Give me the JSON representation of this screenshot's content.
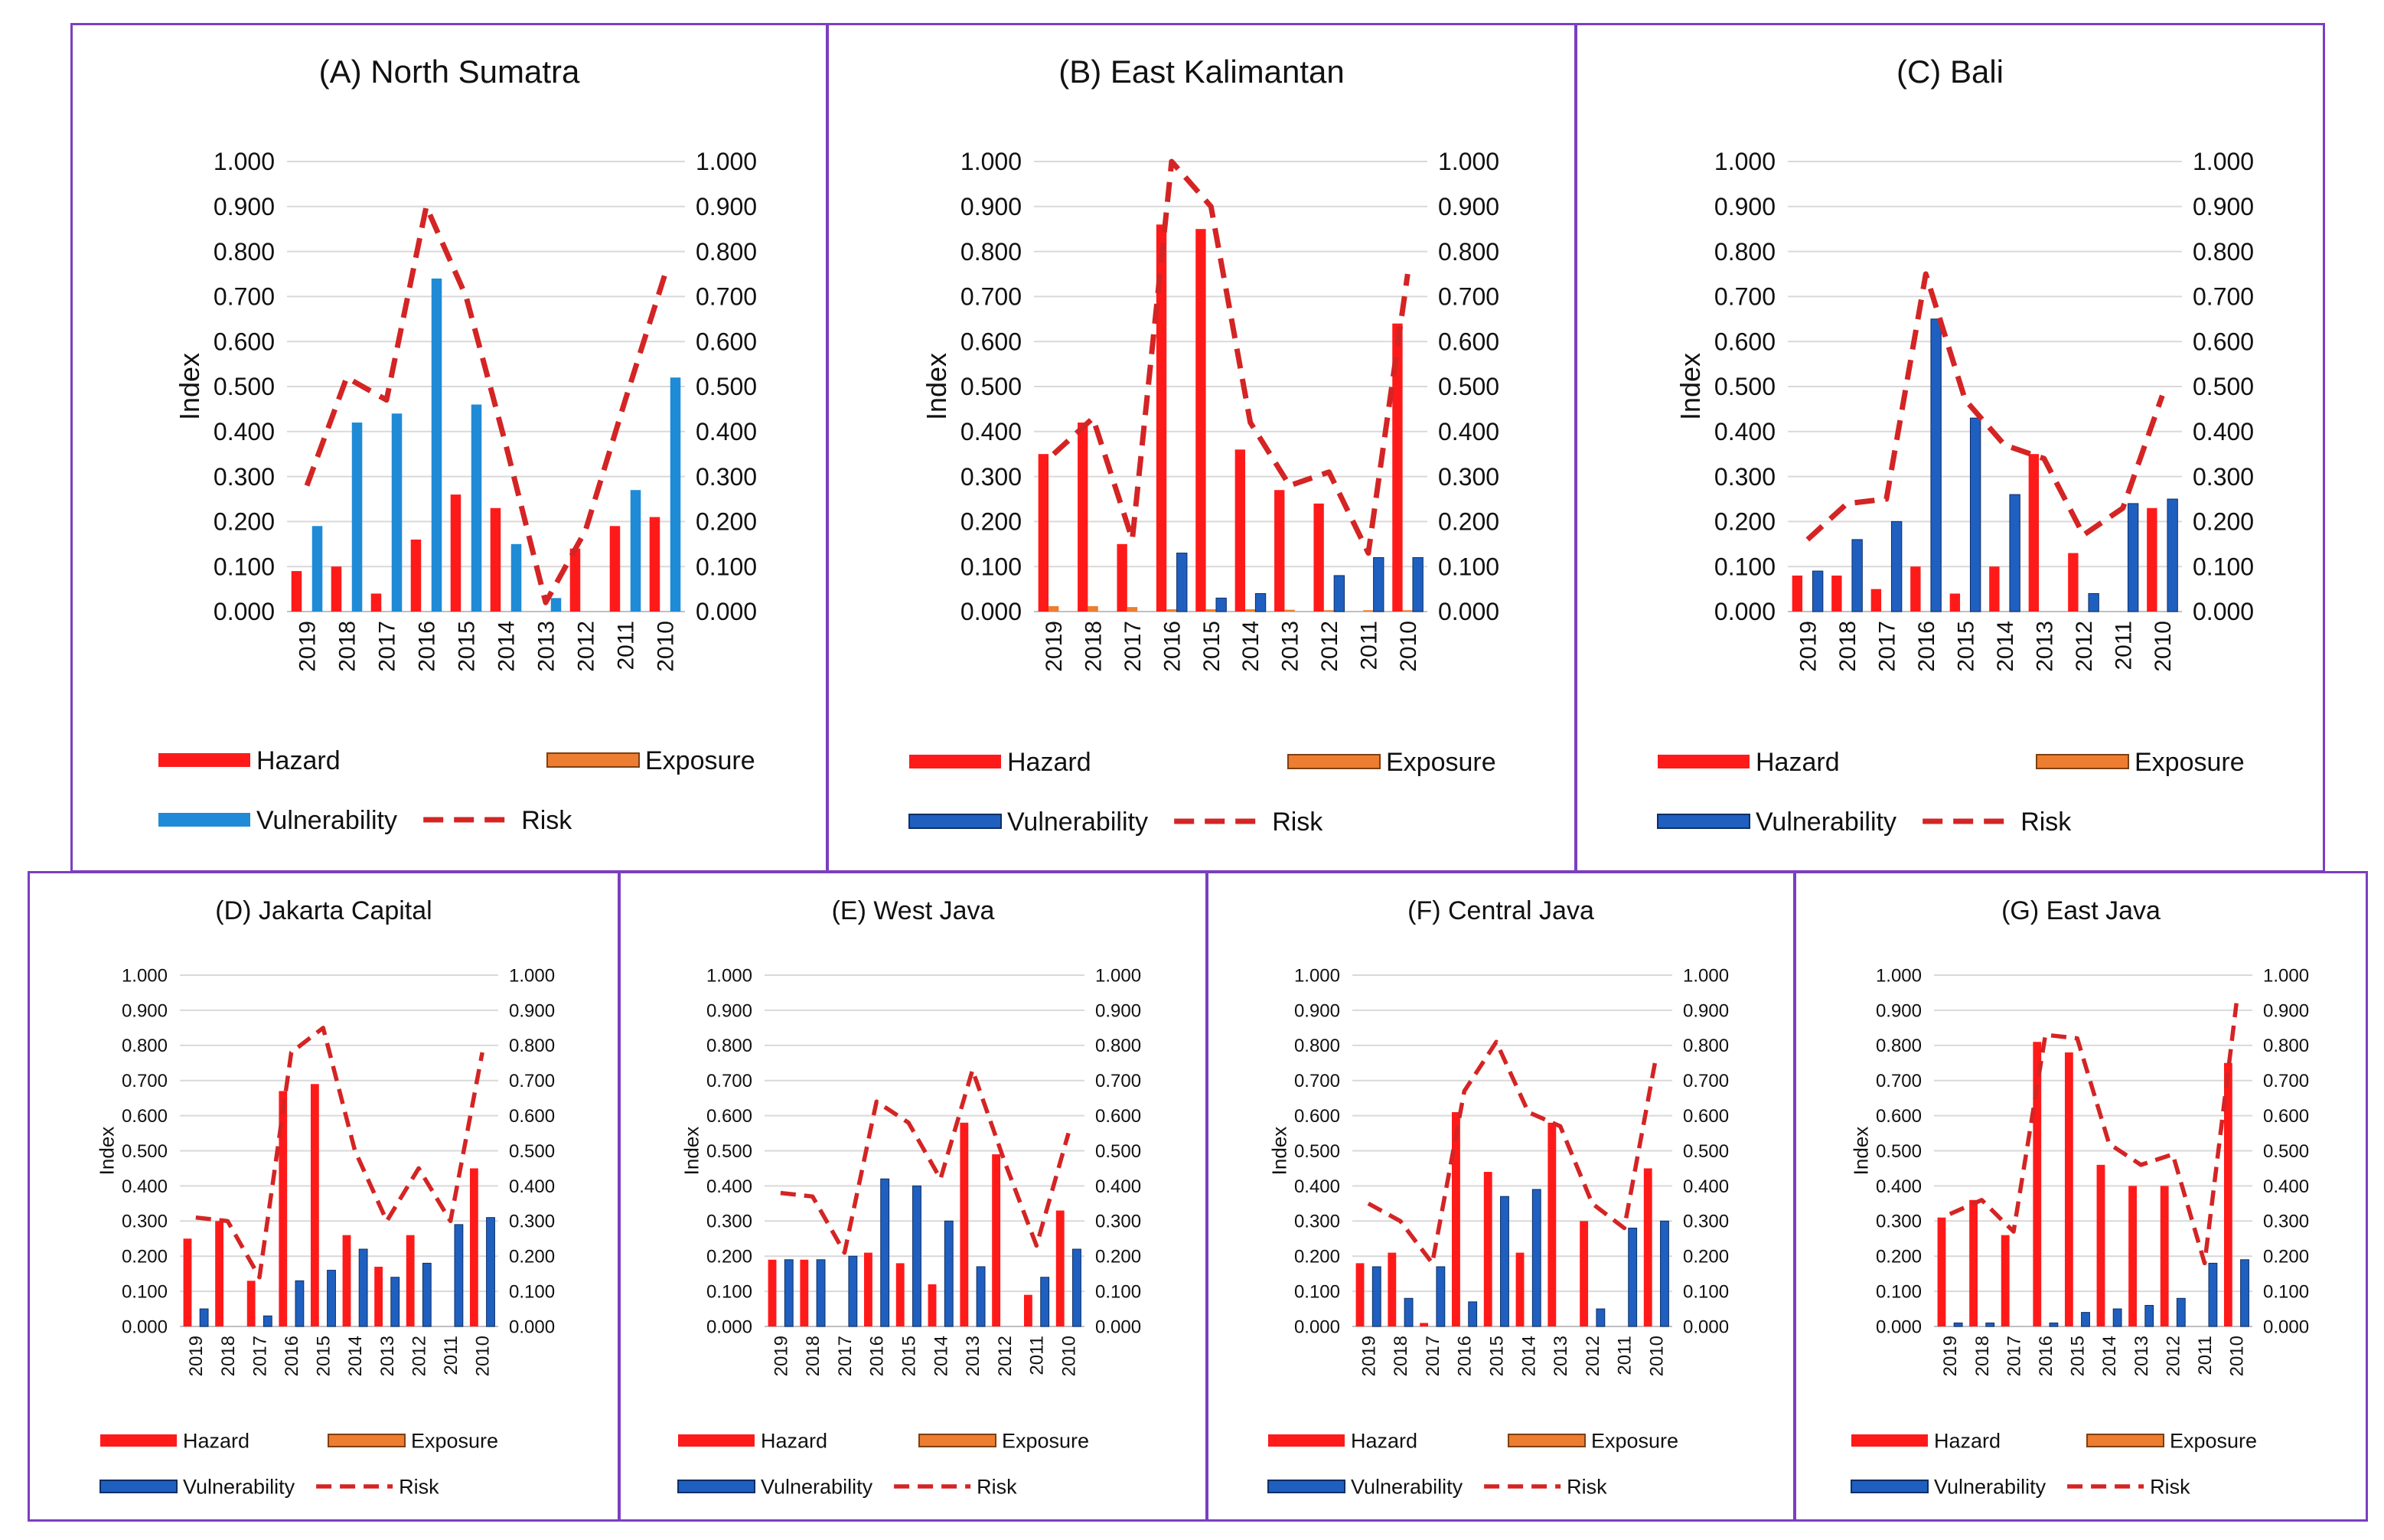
{
  "chart_data": [
    {
      "type": "bar",
      "title": "(A) North Sumatra",
      "ylabel": "Index",
      "ylim": [
        0,
        1
      ],
      "tick_labels": [
        "0.000",
        "0.100",
        "0.200",
        "0.300",
        "0.400",
        "0.500",
        "0.600",
        "0.700",
        "0.800",
        "0.900",
        "1.000"
      ],
      "categories": [
        "2019",
        "2018",
        "2017",
        "2016",
        "2015",
        "2014",
        "2013",
        "2012",
        "2011",
        "2010"
      ],
      "series": [
        {
          "name": "Hazard",
          "kind": "bar",
          "values": [
            0.09,
            0.1,
            0.04,
            0.16,
            0.26,
            0.23,
            0.0,
            0.14,
            0.19,
            0.21
          ]
        },
        {
          "name": "Exposure",
          "kind": "bar",
          "values": [
            0,
            0,
            0,
            0,
            0,
            0,
            0,
            0,
            0,
            0
          ]
        },
        {
          "name": "Vulnerability",
          "kind": "bar",
          "values": [
            0.19,
            0.42,
            0.44,
            0.74,
            0.46,
            0.15,
            0.03,
            0.0,
            0.27,
            0.52
          ]
        },
        {
          "name": "Risk",
          "kind": "line",
          "values": [
            0.28,
            0.52,
            0.47,
            0.9,
            0.7,
            0.37,
            0.02,
            0.18,
            0.47,
            0.75
          ]
        }
      ],
      "vuln_color": "#1f8bd6"
    },
    {
      "type": "bar",
      "title": "(B) East Kalimantan",
      "ylabel": "Index",
      "ylim": [
        0,
        1
      ],
      "tick_labels": [
        "0.000",
        "0.100",
        "0.200",
        "0.300",
        "0.400",
        "0.500",
        "0.600",
        "0.700",
        "0.800",
        "0.900",
        "1.000"
      ],
      "categories": [
        "2019",
        "2018",
        "2017",
        "2016",
        "2015",
        "2014",
        "2013",
        "2012",
        "2011",
        "2010"
      ],
      "series": [
        {
          "name": "Hazard",
          "kind": "bar",
          "values": [
            0.35,
            0.42,
            0.15,
            0.86,
            0.85,
            0.36,
            0.27,
            0.24,
            0.0,
            0.64
          ]
        },
        {
          "name": "Exposure",
          "kind": "bar",
          "values": [
            0.012,
            0.012,
            0.01,
            0.005,
            0.005,
            0.005,
            0.004,
            0.003,
            0.003,
            0.003
          ]
        },
        {
          "name": "Vulnerability",
          "kind": "bar",
          "values": [
            0.0,
            0.0,
            0.0,
            0.13,
            0.03,
            0.04,
            0.0,
            0.08,
            0.12,
            0.12
          ]
        },
        {
          "name": "Risk",
          "kind": "line",
          "values": [
            0.35,
            0.43,
            0.16,
            1.0,
            0.9,
            0.42,
            0.28,
            0.31,
            0.13,
            0.75
          ]
        }
      ],
      "vuln_color": "#1f5fbf"
    },
    {
      "type": "bar",
      "title": "(C) Bali",
      "ylabel": "Index",
      "ylim": [
        0,
        1
      ],
      "tick_labels": [
        "0.000",
        "0.100",
        "0.200",
        "0.300",
        "0.400",
        "0.500",
        "0.600",
        "0.700",
        "0.800",
        "0.900",
        "1.000"
      ],
      "categories": [
        "2019",
        "2018",
        "2017",
        "2016",
        "2015",
        "2014",
        "2013",
        "2012",
        "2011",
        "2010"
      ],
      "series": [
        {
          "name": "Hazard",
          "kind": "bar",
          "values": [
            0.08,
            0.08,
            0.05,
            0.1,
            0.04,
            0.1,
            0.35,
            0.13,
            0.0,
            0.23
          ]
        },
        {
          "name": "Exposure",
          "kind": "bar",
          "values": [
            0,
            0,
            0,
            0,
            0,
            0,
            0,
            0,
            0,
            0
          ]
        },
        {
          "name": "Vulnerability",
          "kind": "bar",
          "values": [
            0.09,
            0.16,
            0.2,
            0.65,
            0.43,
            0.26,
            0.0,
            0.04,
            0.24,
            0.25
          ]
        },
        {
          "name": "Risk",
          "kind": "line",
          "values": [
            0.16,
            0.24,
            0.25,
            0.75,
            0.47,
            0.37,
            0.34,
            0.17,
            0.23,
            0.48
          ]
        }
      ],
      "vuln_color": "#1f5fbf"
    },
    {
      "type": "bar",
      "title": "(D) Jakarta Capital",
      "ylabel": "Index",
      "ylim": [
        0,
        1
      ],
      "tick_labels": [
        "0.000",
        "0.100",
        "0.200",
        "0.300",
        "0.400",
        "0.500",
        "0.600",
        "0.700",
        "0.800",
        "0.900",
        "1.000"
      ],
      "categories": [
        "2019",
        "2018",
        "2017",
        "2016",
        "2015",
        "2014",
        "2013",
        "2012",
        "2011",
        "2010"
      ],
      "series": [
        {
          "name": "Hazard",
          "kind": "bar",
          "values": [
            0.25,
            0.3,
            0.13,
            0.67,
            0.69,
            0.26,
            0.17,
            0.26,
            0.0,
            0.45
          ]
        },
        {
          "name": "Exposure",
          "kind": "bar",
          "values": [
            0,
            0,
            0,
            0,
            0,
            0,
            0,
            0,
            0,
            0
          ]
        },
        {
          "name": "Vulnerability",
          "kind": "bar",
          "values": [
            0.05,
            0.0,
            0.03,
            0.13,
            0.16,
            0.22,
            0.14,
            0.18,
            0.29,
            0.31
          ]
        },
        {
          "name": "Risk",
          "kind": "line",
          "values": [
            0.31,
            0.3,
            0.14,
            0.78,
            0.85,
            0.5,
            0.3,
            0.45,
            0.3,
            0.78
          ]
        }
      ],
      "vuln_color": "#1f5fbf"
    },
    {
      "type": "bar",
      "title": "(E) West Java",
      "ylabel": "Index",
      "ylim": [
        0,
        1
      ],
      "tick_labels": [
        "0.000",
        "0.100",
        "0.200",
        "0.300",
        "0.400",
        "0.500",
        "0.600",
        "0.700",
        "0.800",
        "0.900",
        "1.000"
      ],
      "categories": [
        "2019",
        "2018",
        "2017",
        "2016",
        "2015",
        "2014",
        "2013",
        "2012",
        "2011",
        "2010"
      ],
      "series": [
        {
          "name": "Hazard",
          "kind": "bar",
          "values": [
            0.19,
            0.19,
            0.0,
            0.21,
            0.18,
            0.12,
            0.58,
            0.49,
            0.09,
            0.33
          ]
        },
        {
          "name": "Exposure",
          "kind": "bar",
          "values": [
            0,
            0,
            0,
            0,
            0,
            0,
            0,
            0,
            0,
            0
          ]
        },
        {
          "name": "Vulnerability",
          "kind": "bar",
          "values": [
            0.19,
            0.19,
            0.2,
            0.42,
            0.4,
            0.3,
            0.17,
            0.0,
            0.14,
            0.22
          ]
        },
        {
          "name": "Risk",
          "kind": "line",
          "values": [
            0.38,
            0.37,
            0.21,
            0.64,
            0.58,
            0.42,
            0.73,
            0.47,
            0.23,
            0.55
          ]
        }
      ],
      "vuln_color": "#1f5fbf"
    },
    {
      "type": "bar",
      "title": "(F) Central Java",
      "ylabel": "Index",
      "ylim": [
        0,
        1
      ],
      "tick_labels": [
        "0.000",
        "0.100",
        "0.200",
        "0.300",
        "0.400",
        "0.500",
        "0.600",
        "0.700",
        "0.800",
        "0.900",
        "1.000"
      ],
      "categories": [
        "2019",
        "2018",
        "2017",
        "2016",
        "2015",
        "2014",
        "2013",
        "2012",
        "2011",
        "2010"
      ],
      "series": [
        {
          "name": "Hazard",
          "kind": "bar",
          "values": [
            0.18,
            0.21,
            0.01,
            0.61,
            0.44,
            0.21,
            0.58,
            0.3,
            0.0,
            0.45
          ]
        },
        {
          "name": "Exposure",
          "kind": "bar",
          "values": [
            0,
            0,
            0,
            0,
            0,
            0,
            0,
            0,
            0,
            0
          ]
        },
        {
          "name": "Vulnerability",
          "kind": "bar",
          "values": [
            0.17,
            0.08,
            0.17,
            0.07,
            0.37,
            0.39,
            0.0,
            0.05,
            0.28,
            0.3
          ]
        },
        {
          "name": "Risk",
          "kind": "line",
          "values": [
            0.35,
            0.3,
            0.18,
            0.67,
            0.81,
            0.61,
            0.57,
            0.35,
            0.28,
            0.77
          ]
        }
      ],
      "vuln_color": "#1f5fbf"
    },
    {
      "type": "bar",
      "title": "(G) East Java",
      "ylabel": "Index",
      "ylim": [
        0,
        1
      ],
      "tick_labels": [
        "0.000",
        "0.100",
        "0.200",
        "0.300",
        "0.400",
        "0.500",
        "0.600",
        "0.700",
        "0.800",
        "0.900",
        "1.000"
      ],
      "categories": [
        "2019",
        "2018",
        "2017",
        "2016",
        "2015",
        "2014",
        "2013",
        "2012",
        "2011",
        "2010"
      ],
      "series": [
        {
          "name": "Hazard",
          "kind": "bar",
          "values": [
            0.31,
            0.36,
            0.26,
            0.81,
            0.78,
            0.46,
            0.4,
            0.4,
            0.0,
            0.75
          ]
        },
        {
          "name": "Exposure",
          "kind": "bar",
          "values": [
            0,
            0,
            0,
            0,
            0,
            0,
            0,
            0,
            0,
            0
          ]
        },
        {
          "name": "Vulnerability",
          "kind": "bar",
          "values": [
            0.01,
            0.01,
            0.0,
            0.01,
            0.04,
            0.05,
            0.06,
            0.08,
            0.18,
            0.19
          ]
        },
        {
          "name": "Risk",
          "kind": "line",
          "values": [
            0.32,
            0.36,
            0.27,
            0.83,
            0.82,
            0.52,
            0.46,
            0.49,
            0.18,
            0.92
          ]
        }
      ],
      "vuln_color": "#1f5fbf"
    }
  ],
  "colors": {
    "hazard": "#ff1a1a",
    "exposure": "#ed7d31",
    "risk": "#d42424",
    "grid": "#d9d9d9",
    "frame": "#7a3fbf"
  }
}
